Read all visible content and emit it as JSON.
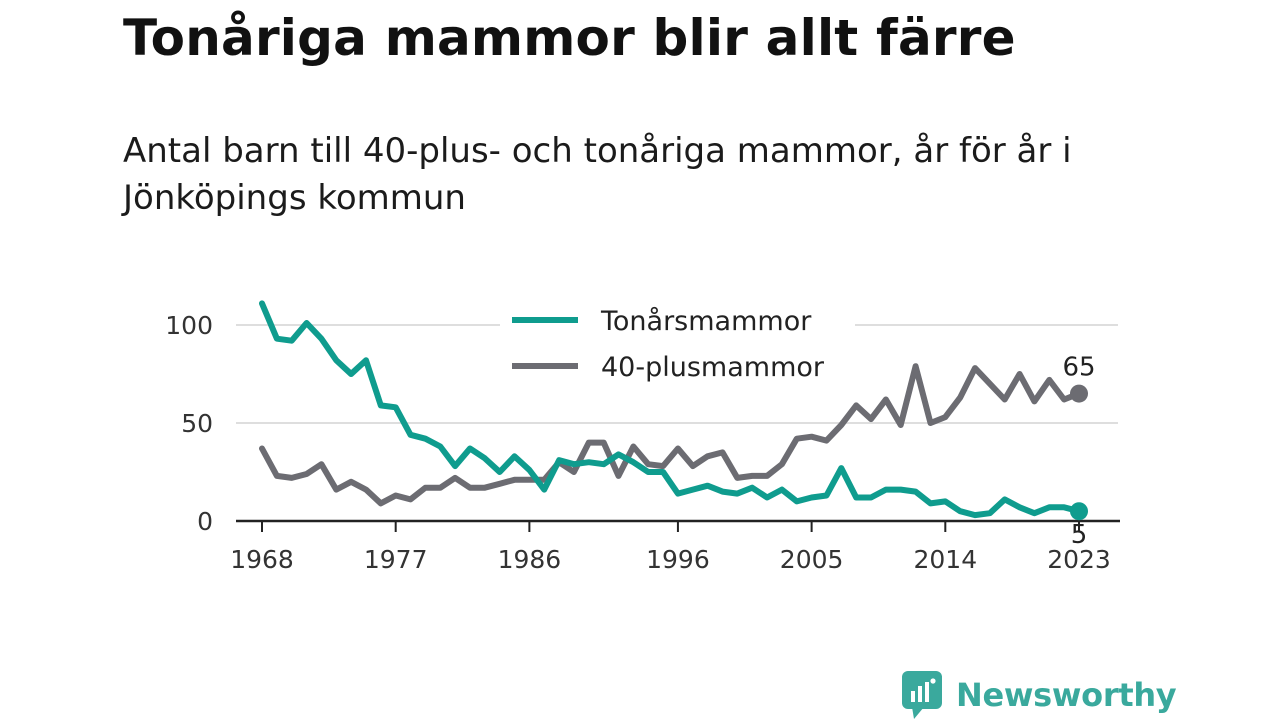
{
  "header": {
    "title": "Tonåriga mammor blir allt färre",
    "subtitle": "Antal barn till 40-plus- och tonåriga mammor, år för år i Jönköpings kommun"
  },
  "brand": {
    "name": "Newsworthy",
    "icon": "newsworthy-logo-icon",
    "color": "#3aa99d"
  },
  "chart_data": {
    "type": "line",
    "title": "",
    "xlabel": "",
    "ylabel": "",
    "ylim": [
      0,
      115
    ],
    "xlim": [
      1968,
      2023
    ],
    "y_ticks": [
      0,
      50,
      100
    ],
    "x_ticks": [
      1968,
      1977,
      1986,
      1996,
      2005,
      2014,
      2023
    ],
    "grid": "horizontal",
    "legend_position": "top-center",
    "end_labels": [
      {
        "series": "40-plusmammor",
        "text": "65"
      },
      {
        "series": "Tonårsmammor",
        "text": "5"
      }
    ],
    "series": [
      {
        "name": "Tonårsmammor",
        "color": "#0f9c8e",
        "x": [
          1968,
          1969,
          1970,
          1971,
          1972,
          1973,
          1974,
          1975,
          1976,
          1977,
          1978,
          1979,
          1980,
          1981,
          1982,
          1983,
          1984,
          1985,
          1986,
          1987,
          1988,
          1989,
          1990,
          1991,
          1992,
          1993,
          1994,
          1995,
          1996,
          1997,
          1998,
          1999,
          2000,
          2001,
          2002,
          2003,
          2004,
          2005,
          2006,
          2007,
          2008,
          2009,
          2010,
          2011,
          2012,
          2013,
          2014,
          2015,
          2016,
          2017,
          2018,
          2019,
          2020,
          2021,
          2022,
          2023
        ],
        "values": [
          111,
          93,
          92,
          101,
          93,
          82,
          75,
          82,
          59,
          58,
          44,
          42,
          38,
          28,
          37,
          32,
          25,
          33,
          26,
          16,
          31,
          29,
          30,
          29,
          34,
          30,
          25,
          25,
          14,
          16,
          18,
          15,
          14,
          17,
          12,
          16,
          10,
          12,
          13,
          27,
          12,
          12,
          16,
          16,
          15,
          9,
          10,
          5,
          3,
          4,
          11,
          7,
          4,
          7,
          7,
          5
        ]
      },
      {
        "name": "40-plusmammor",
        "color": "#6c6c72",
        "x": [
          1968,
          1969,
          1970,
          1971,
          1972,
          1973,
          1974,
          1975,
          1976,
          1977,
          1978,
          1979,
          1980,
          1981,
          1982,
          1983,
          1984,
          1985,
          1986,
          1987,
          1988,
          1989,
          1990,
          1991,
          1992,
          1993,
          1994,
          1995,
          1996,
          1997,
          1998,
          1999,
          2000,
          2001,
          2002,
          2003,
          2004,
          2005,
          2006,
          2007,
          2008,
          2009,
          2010,
          2011,
          2012,
          2013,
          2014,
          2015,
          2016,
          2017,
          2018,
          2019,
          2020,
          2021,
          2022,
          2023
        ],
        "values": [
          37,
          23,
          22,
          24,
          29,
          16,
          20,
          16,
          9,
          13,
          11,
          17,
          17,
          22,
          17,
          17,
          19,
          21,
          21,
          21,
          30,
          25,
          40,
          40,
          23,
          38,
          29,
          28,
          37,
          28,
          33,
          35,
          22,
          23,
          23,
          29,
          42,
          43,
          41,
          49,
          59,
          52,
          62,
          49,
          79,
          50,
          53,
          63,
          78,
          70,
          62,
          75,
          61,
          72,
          62,
          65
        ]
      }
    ]
  }
}
